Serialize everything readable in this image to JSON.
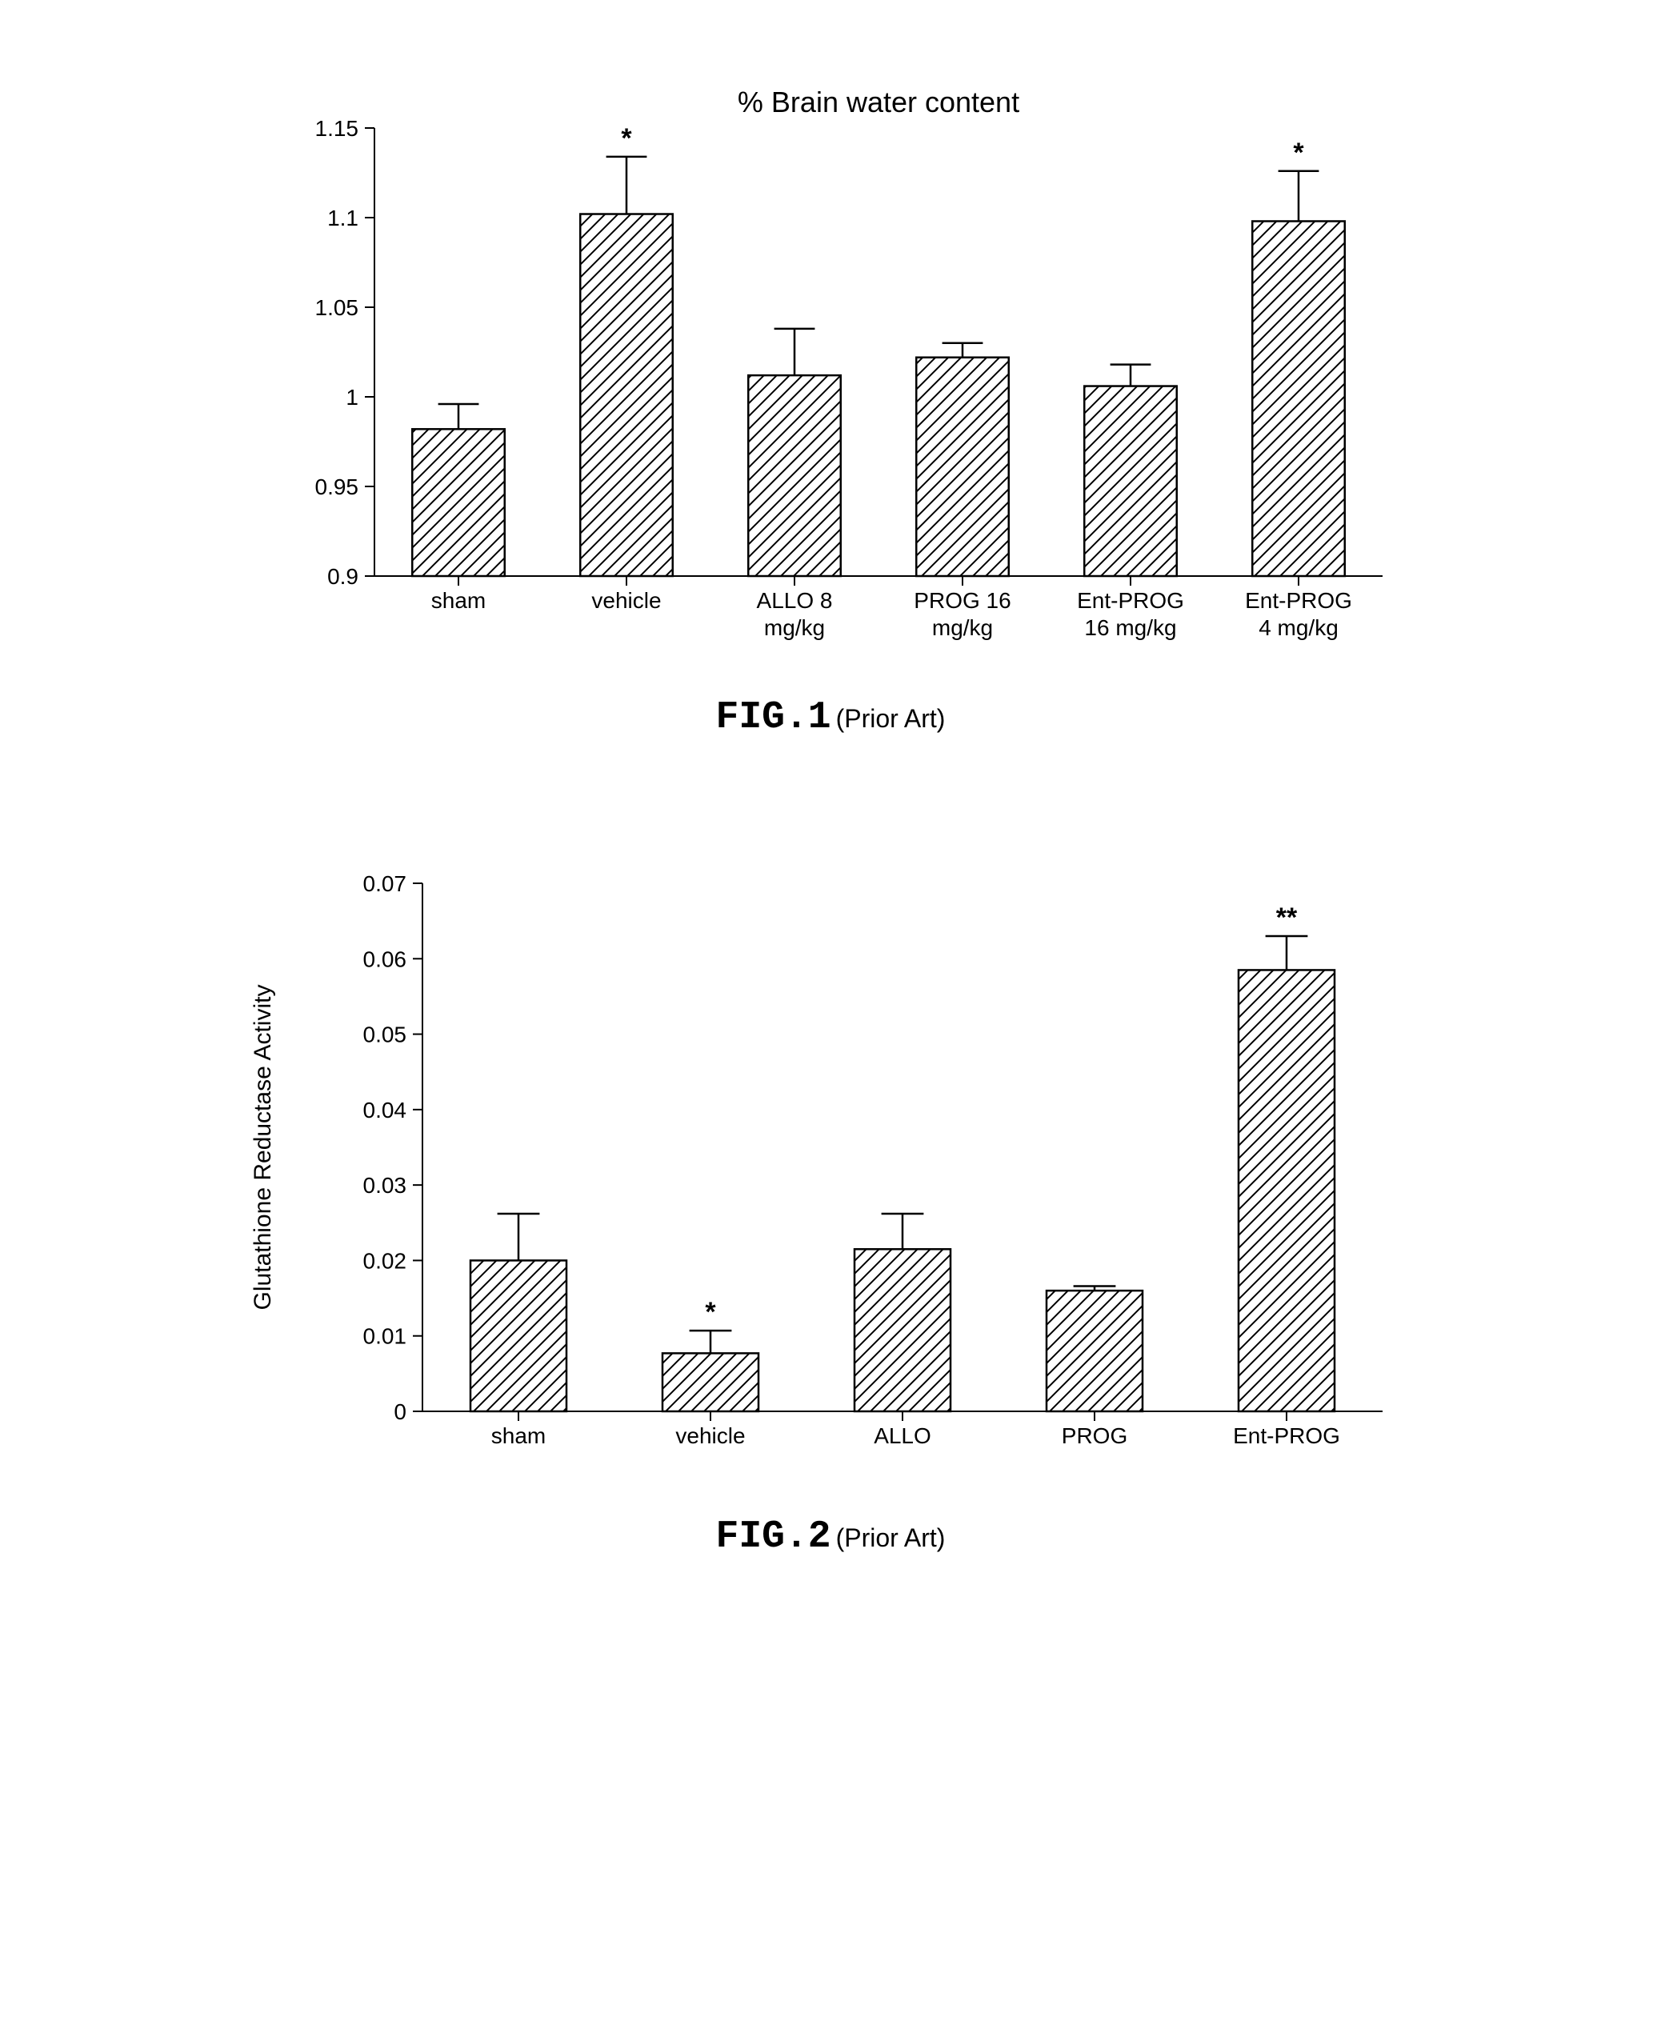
{
  "fig1": {
    "type": "bar",
    "title": "% Brain water content",
    "categories": [
      [
        "sham"
      ],
      [
        "vehicle"
      ],
      [
        "ALLO 8",
        "mg/kg"
      ],
      [
        "PROG 16",
        "mg/kg"
      ],
      [
        "Ent-PROG",
        "16 mg/kg"
      ],
      [
        "Ent-PROG",
        "4 mg/kg"
      ]
    ],
    "values": [
      0.982,
      1.102,
      1.012,
      1.022,
      1.006,
      1.098
    ],
    "errors": [
      0.014,
      0.032,
      0.026,
      0.008,
      0.012,
      0.028
    ],
    "significance": [
      "",
      "*",
      "",
      "",
      "",
      "*"
    ],
    "ylim": [
      0.9,
      1.15
    ],
    "yticks": [
      0.9,
      0.95,
      1,
      1.05,
      1.1,
      1.15
    ],
    "ytick_labels": [
      "0.9",
      "0.95",
      "1",
      "1.05",
      "1.1",
      "1.15"
    ],
    "bar_fill": "#ffffff",
    "bar_stroke": "#000000",
    "hatch_color": "#000000",
    "background_color": "#ffffff",
    "caption_main": "FIG.1",
    "caption_sub": "(Prior Art)",
    "title_fontsize": 36,
    "label_fontsize": 28
  },
  "fig2": {
    "type": "bar",
    "title": "",
    "ylabel": "Glutathione Reductase Activity",
    "categories": [
      [
        "sham"
      ],
      [
        "vehicle"
      ],
      [
        "ALLO"
      ],
      [
        "PROG"
      ],
      [
        "Ent-PROG"
      ]
    ],
    "values": [
      0.02,
      0.0077,
      0.0215,
      0.016,
      0.0585
    ],
    "errors": [
      0.0062,
      0.003,
      0.0047,
      0.0006,
      0.0045
    ],
    "significance": [
      "",
      "*",
      "",
      "",
      "**"
    ],
    "ylim": [
      0,
      0.07
    ],
    "yticks": [
      0,
      0.01,
      0.02,
      0.03,
      0.04,
      0.05,
      0.06,
      0.07
    ],
    "ytick_labels": [
      "0",
      "0.01",
      "0.02",
      "0.03",
      "0.04",
      "0.05",
      "0.06",
      "0.07"
    ],
    "bar_fill": "#ffffff",
    "bar_stroke": "#000000",
    "hatch_color": "#000000",
    "background_color": "#ffffff",
    "caption_main": "FIG.2",
    "caption_sub": "(Prior Art)",
    "title_fontsize": 36,
    "label_fontsize": 28
  }
}
